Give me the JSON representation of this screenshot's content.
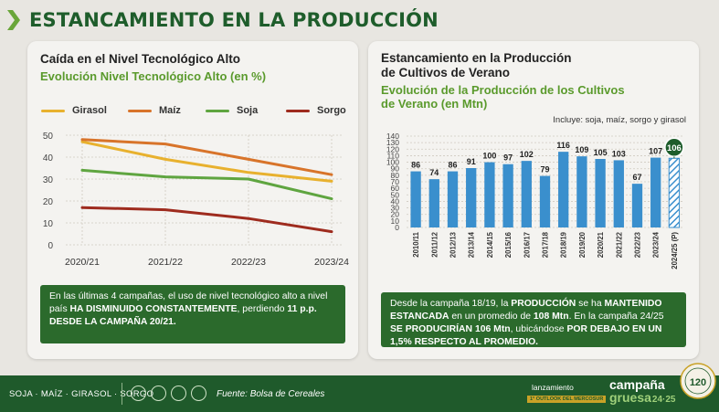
{
  "header": {
    "title": "ESTANCAMIENTO EN LA PRODUCCIÓN"
  },
  "left_card": {
    "title": "Caída en el Nivel Tecnológico Alto",
    "subtitle": "Evolución Nivel Tecnológico Alto (en %)",
    "footnote_parts": [
      "En las últimas 4 campañas, el uso de nivel tecnológico alto a nivel país ",
      "HA DISMINUIDO CONSTANTEMENTE",
      ", perdiendo ",
      "11 p.p. DESDE LA CAMPAÑA 20/21."
    ]
  },
  "right_card": {
    "title_line1": "Estancamiento en la Producción",
    "title_line2": "de Cultivos de Verano",
    "subtitle_line1": "Evolución de la Producción de los Cultivos",
    "subtitle_line2": "de Verano (en Mtn)",
    "note": "Incluye: soja, maíz, sorgo y girasol",
    "footnote_parts": [
      "Desde la campaña 18/19, la ",
      "PRODUCCIÓN",
      " se ha ",
      "MANTENIDO ESTANCADA",
      " en un promedio de ",
      "108 Mtn",
      ". En la campaña 24/25 ",
      "SE PRODUCIRÍAN 106 Mtn",
      ", ubicándose ",
      "POR DEBAJO EN UN 1,5% RESPECTO AL PROMEDIO."
    ]
  },
  "chart_data": [
    {
      "type": "line",
      "title": "Evolución Nivel Tecnológico Alto (en %)",
      "x": [
        "2020/21",
        "2021/22",
        "2022/23",
        "2023/24"
      ],
      "ylim": [
        0,
        50
      ],
      "yticks": [
        0,
        10,
        20,
        30,
        40,
        50
      ],
      "grid": true,
      "legend_position": "top",
      "series": [
        {
          "name": "Girasol",
          "color": "#e8b12e",
          "values": [
            47,
            39,
            33,
            29
          ]
        },
        {
          "name": "Maíz",
          "color": "#d8742a",
          "values": [
            48,
            46,
            39,
            32
          ]
        },
        {
          "name": "Soja",
          "color": "#5fa540",
          "values": [
            34,
            31,
            30,
            21
          ]
        },
        {
          "name": "Sorgo",
          "color": "#9e2b1e",
          "values": [
            17,
            16,
            12,
            6
          ]
        }
      ]
    },
    {
      "type": "bar",
      "title": "Evolución de la Producción de los Cultivos de Verano (en Mtn)",
      "categories": [
        "2010/11",
        "2011/12",
        "2012/13",
        "2013/14",
        "2014/15",
        "2015/16",
        "2016/17",
        "2017/18",
        "2018/19",
        "2019/20",
        "2020/21",
        "2021/22",
        "2022/23",
        "2023/24",
        "2024/25 (P)"
      ],
      "values": [
        86,
        74,
        86,
        91,
        100,
        97,
        102,
        79,
        116,
        109,
        105,
        103,
        67,
        107,
        106
      ],
      "labels": [
        "86",
        "74",
        "86",
        "91",
        "100",
        "97",
        "102",
        "79",
        "116",
        "109",
        "105",
        "103",
        "67",
        "107",
        "106"
      ],
      "projected_index": 14,
      "ylim": [
        0,
        140
      ],
      "yticks": [
        0,
        10,
        20,
        30,
        40,
        50,
        60,
        70,
        80,
        90,
        100,
        110,
        120,
        130,
        140
      ],
      "grid": true,
      "bar_color": "#3a8fcd",
      "highlight_color": "#1e5d2b"
    }
  ],
  "footer": {
    "crops": "SOJA · MAÍZ · GIRASOL · SORGO",
    "source": "Fuente: Bolsa de Cereales",
    "launch": "lanzamiento",
    "campaign1": "campaña",
    "campaign2": "gruesa",
    "campaign_year": "24·25",
    "outlook": "1° OUTLOOK DEL MERCOSUR",
    "seal_text": "120"
  },
  "colors": {
    "primary_green": "#1e5d2b",
    "accent_green": "#5a9a2c",
    "bar_blue": "#3a8fcd"
  }
}
